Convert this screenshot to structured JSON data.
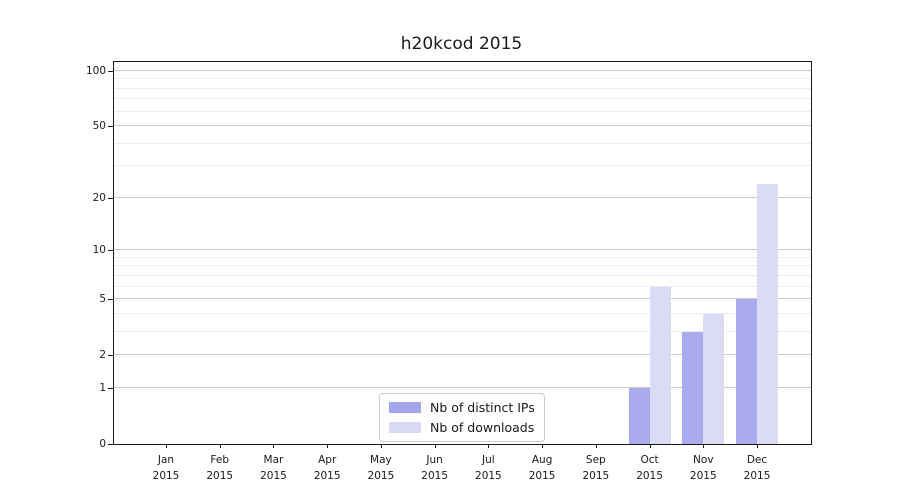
{
  "title": "h20kcod 2015",
  "chart_data": {
    "type": "bar",
    "title": "h20kcod 2015",
    "categories": [
      "Jan 2015",
      "Feb 2015",
      "Mar 2015",
      "Apr 2015",
      "May 2015",
      "Jun 2015",
      "Jul 2015",
      "Aug 2015",
      "Sep 2015",
      "Oct 2015",
      "Nov 2015",
      "Dec 2015"
    ],
    "category_months": [
      "Jan",
      "Feb",
      "Mar",
      "Apr",
      "May",
      "Jun",
      "Jul",
      "Aug",
      "Sep",
      "Oct",
      "Nov",
      "Dec"
    ],
    "x_tick_year": "2015",
    "series": [
      {
        "name": "Nb of distinct IPs",
        "color": "#a5a5ee",
        "values": [
          0,
          0,
          0,
          0,
          0,
          0,
          0,
          0,
          0,
          1,
          3,
          5
        ]
      },
      {
        "name": "Nb of downloads",
        "color": "#d9d9f6",
        "values": [
          0,
          0,
          0,
          0,
          0,
          0,
          0,
          0,
          0,
          6,
          4,
          24
        ]
      }
    ],
    "xlabel": "",
    "ylabel": "",
    "yscale": "log1p",
    "y_major_ticks": [
      0,
      1,
      2,
      5,
      10,
      20,
      50,
      100
    ],
    "y_minor_gridlines": [
      3,
      4,
      6,
      7,
      8,
      9,
      30,
      40,
      60,
      70,
      80,
      90
    ],
    "ylim": [
      0,
      112
    ],
    "grid": true,
    "legend_position": "lower center"
  },
  "colors": {
    "bar_distinct_ips": "#a5a5ee",
    "bar_downloads": "#d9d9f6",
    "major_grid": "#cccccc",
    "minor_grid": "#ececec",
    "spine": "#1a1a1a",
    "text": "#1a1a1a",
    "legend_border": "#cccccc",
    "background": "#ffffff"
  }
}
